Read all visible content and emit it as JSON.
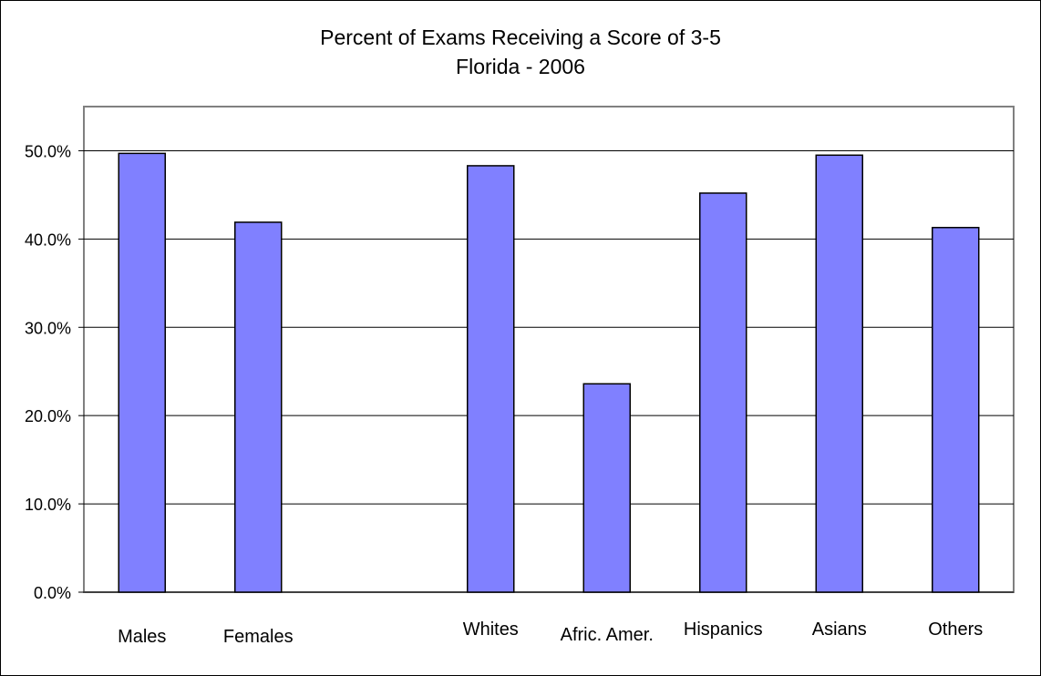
{
  "chart_data": {
    "type": "bar",
    "title": "Percent of Exams Receiving a Score of 3-5",
    "subtitle": "Florida - 2006",
    "xlabel": "",
    "ylabel": "",
    "ylim": [
      0,
      55
    ],
    "y_ticks": [
      0,
      10,
      20,
      30,
      40,
      50
    ],
    "y_tick_format": "percent_1dp",
    "grid": true,
    "legend": "none",
    "bar_color": "#8080ff",
    "categories": [
      "Males",
      "Females",
      "",
      "Whites",
      "Afric. Amer.",
      "Hispanics",
      "Asians",
      "Others"
    ],
    "values": [
      49.7,
      41.9,
      null,
      48.3,
      23.6,
      45.2,
      49.5,
      41.3
    ]
  }
}
